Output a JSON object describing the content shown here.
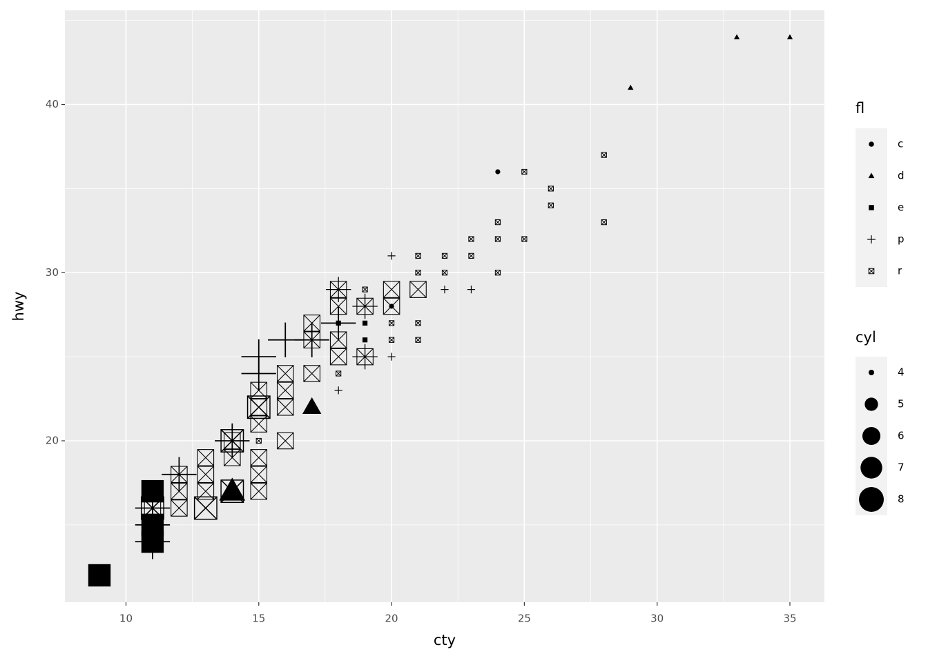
{
  "chart_data": {
    "type": "scatter",
    "x_label": "cty",
    "y_label": "hwy",
    "xlim": [
      7.7,
      36.3
    ],
    "ylim": [
      10.4,
      45.6
    ],
    "xticks": [
      10,
      15,
      20,
      25,
      30,
      35
    ],
    "yticks": [
      20,
      30,
      40
    ],
    "xminor": [
      12.5,
      17.5,
      22.5,
      27.5,
      32.5
    ],
    "yminor": [
      15,
      25,
      35,
      45
    ],
    "grid": true,
    "color": "#000000",
    "shape_legend_title": "fl",
    "size_legend": {
      "title": "cyl",
      "values": [
        4,
        5,
        6,
        7,
        8
      ]
    },
    "series": [
      {
        "name": "c",
        "shape": "circle",
        "x": [
          24,
          20
        ],
        "y": [
          36,
          28
        ],
        "cyl": [
          4,
          4
        ]
      },
      {
        "name": "d",
        "shape": "triangle",
        "x": [
          33,
          35,
          29,
          17,
          14
        ],
        "y": [
          44,
          44,
          41,
          22,
          17
        ],
        "cyl": [
          4,
          4,
          4,
          6,
          8
        ]
      },
      {
        "name": "e",
        "shape": "square",
        "x": [
          9,
          11,
          11,
          11,
          19,
          19,
          18
        ],
        "y": [
          12,
          14,
          15,
          17,
          26,
          27,
          27
        ],
        "cyl": [
          8,
          8,
          8,
          8,
          4,
          4,
          4
        ]
      },
      {
        "name": "p",
        "shape": "plus",
        "x": [
          20,
          22,
          23,
          20,
          18,
          18,
          19,
          15,
          15,
          16,
          17,
          18,
          14,
          12,
          11,
          11,
          11,
          19
        ],
        "y": [
          31,
          29,
          29,
          25,
          23,
          29,
          28,
          25,
          24,
          26,
          26,
          27,
          20,
          18,
          16,
          15,
          14,
          25
        ],
        "cyl": [
          4,
          4,
          4,
          4,
          4,
          6,
          6,
          8,
          8,
          8,
          8,
          8,
          8,
          8,
          8,
          8,
          8,
          6
        ]
      },
      {
        "name": "r",
        "shape": "boxx",
        "x": [
          25,
          26,
          26,
          28,
          28,
          24,
          24,
          25,
          23,
          23,
          22,
          22,
          21,
          21,
          24,
          21,
          21,
          20,
          20,
          19,
          18,
          15,
          18,
          18,
          18,
          18,
          19,
          19,
          20,
          20,
          21,
          17,
          17,
          17,
          16,
          16,
          16,
          16,
          15,
          15,
          15,
          15,
          15,
          15,
          14,
          14,
          13,
          13,
          13,
          12,
          12,
          12,
          11,
          11,
          13,
          14,
          15,
          14,
          11
        ],
        "y": [
          36,
          35,
          34,
          37,
          33,
          33,
          32,
          32,
          32,
          31,
          31,
          30,
          31,
          30,
          30,
          27,
          26,
          27,
          26,
          29,
          24,
          20,
          29,
          28,
          26,
          25,
          28,
          25,
          29,
          28,
          29,
          27,
          26,
          24,
          24,
          23,
          22,
          20,
          23,
          22,
          21,
          19,
          18,
          17,
          20,
          19,
          19,
          18,
          17,
          18,
          17,
          16,
          17,
          16,
          16,
          17,
          22,
          20,
          16
        ],
        "cyl": [
          4,
          4,
          4,
          4,
          4,
          4,
          4,
          4,
          4,
          4,
          4,
          4,
          4,
          4,
          4,
          4,
          4,
          4,
          4,
          4,
          4,
          4,
          6,
          6,
          6,
          6,
          6,
          6,
          6,
          6,
          6,
          6,
          6,
          6,
          6,
          6,
          6,
          6,
          6,
          6,
          6,
          6,
          6,
          6,
          6,
          6,
          6,
          6,
          6,
          6,
          6,
          6,
          6,
          6,
          8,
          8,
          8,
          8,
          8
        ]
      }
    ]
  }
}
